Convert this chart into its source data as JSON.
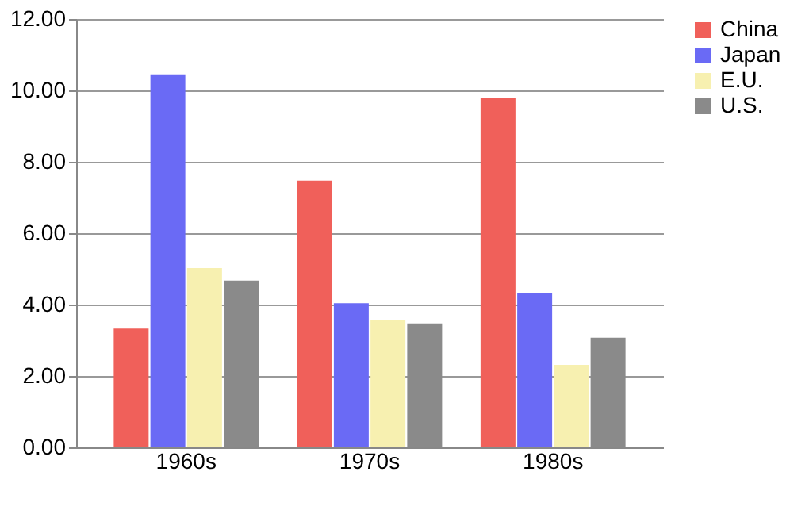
{
  "chart_data": {
    "type": "bar",
    "categories": [
      "1960s",
      "1970s",
      "1980s"
    ],
    "series": [
      {
        "name": "China",
        "color": "#f0605a",
        "values": [
          3.33,
          7.47,
          9.78
        ]
      },
      {
        "name": "Japan",
        "color": "#6a6af5",
        "values": [
          10.45,
          4.04,
          4.31
        ]
      },
      {
        "name": "E.U.",
        "color": "#f7f0b0",
        "values": [
          5.02,
          3.56,
          2.31
        ]
      },
      {
        "name": "U.S.",
        "color": "#8a8a8a",
        "values": [
          4.67,
          3.47,
          3.07
        ]
      }
    ],
    "ylim": [
      0,
      12
    ],
    "yticks": [
      {
        "value": 0,
        "label": "0.00"
      },
      {
        "value": 2,
        "label": "2.00"
      },
      {
        "value": 4,
        "label": "4.00"
      },
      {
        "value": 6,
        "label": "6.00"
      },
      {
        "value": 8,
        "label": "8.00"
      },
      {
        "value": 10,
        "label": "10.00"
      },
      {
        "value": 12,
        "label": "12.00"
      }
    ],
    "grid": "y",
    "legend": "right"
  }
}
